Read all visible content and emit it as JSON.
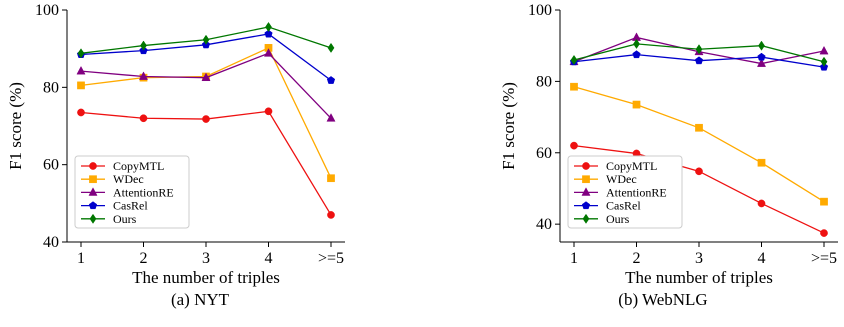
{
  "chart_data": [
    {
      "type": "line",
      "caption": "(a)  NYT",
      "xlabel": "The number of triples",
      "ylabel": "F1 score (%)",
      "categories": [
        "1",
        "2",
        "3",
        "4",
        ">=5"
      ],
      "ylim": [
        40,
        100
      ],
      "yticks": [
        "40",
        "60",
        "80",
        "100"
      ],
      "legend_position": "bottom-left",
      "series": [
        {
          "name": "CopyMTL",
          "color": "#ee1111",
          "marker": "circle",
          "values": [
            73.5,
            72.0,
            71.8,
            73.8,
            47.0
          ]
        },
        {
          "name": "WDec",
          "color": "#ffaa00",
          "marker": "square",
          "values": [
            80.5,
            82.5,
            82.8,
            90.2,
            56.5
          ]
        },
        {
          "name": "AttentionRE",
          "color": "#800080",
          "marker": "triangle",
          "values": [
            84.2,
            82.8,
            82.5,
            88.8,
            72.0
          ]
        },
        {
          "name": "CasRel",
          "color": "#0000cc",
          "marker": "pentagon",
          "values": [
            88.5,
            89.5,
            91.0,
            93.8,
            81.8
          ]
        },
        {
          "name": "Ours",
          "color": "#007700",
          "marker": "diamond",
          "values": [
            88.8,
            90.8,
            92.3,
            95.6,
            90.2
          ]
        }
      ]
    },
    {
      "type": "line",
      "caption": "(b)  WebNLG",
      "xlabel": "The number of triples",
      "ylabel": "F1 score (%)",
      "categories": [
        "1",
        "2",
        "3",
        "4",
        ">=5"
      ],
      "ylim": [
        35,
        100
      ],
      "yticks": [
        "40",
        "60",
        "80",
        "100"
      ],
      "legend_position": "bottom-left",
      "series": [
        {
          "name": "CopyMTL",
          "color": "#ee1111",
          "marker": "circle",
          "values": [
            62.0,
            59.8,
            54.8,
            45.8,
            37.5
          ]
        },
        {
          "name": "WDec",
          "color": "#ffaa00",
          "marker": "square",
          "values": [
            78.5,
            73.5,
            67.0,
            57.2,
            46.3
          ]
        },
        {
          "name": "AttentionRE",
          "color": "#800080",
          "marker": "triangle",
          "values": [
            85.5,
            92.3,
            88.3,
            85.0,
            88.5
          ]
        },
        {
          "name": "CasRel",
          "color": "#0000cc",
          "marker": "pentagon",
          "values": [
            85.5,
            87.5,
            85.8,
            86.8,
            84.0
          ]
        },
        {
          "name": "Ours",
          "color": "#007700",
          "marker": "diamond",
          "values": [
            86.0,
            90.5,
            89.0,
            90.0,
            85.5
          ]
        }
      ]
    }
  ]
}
